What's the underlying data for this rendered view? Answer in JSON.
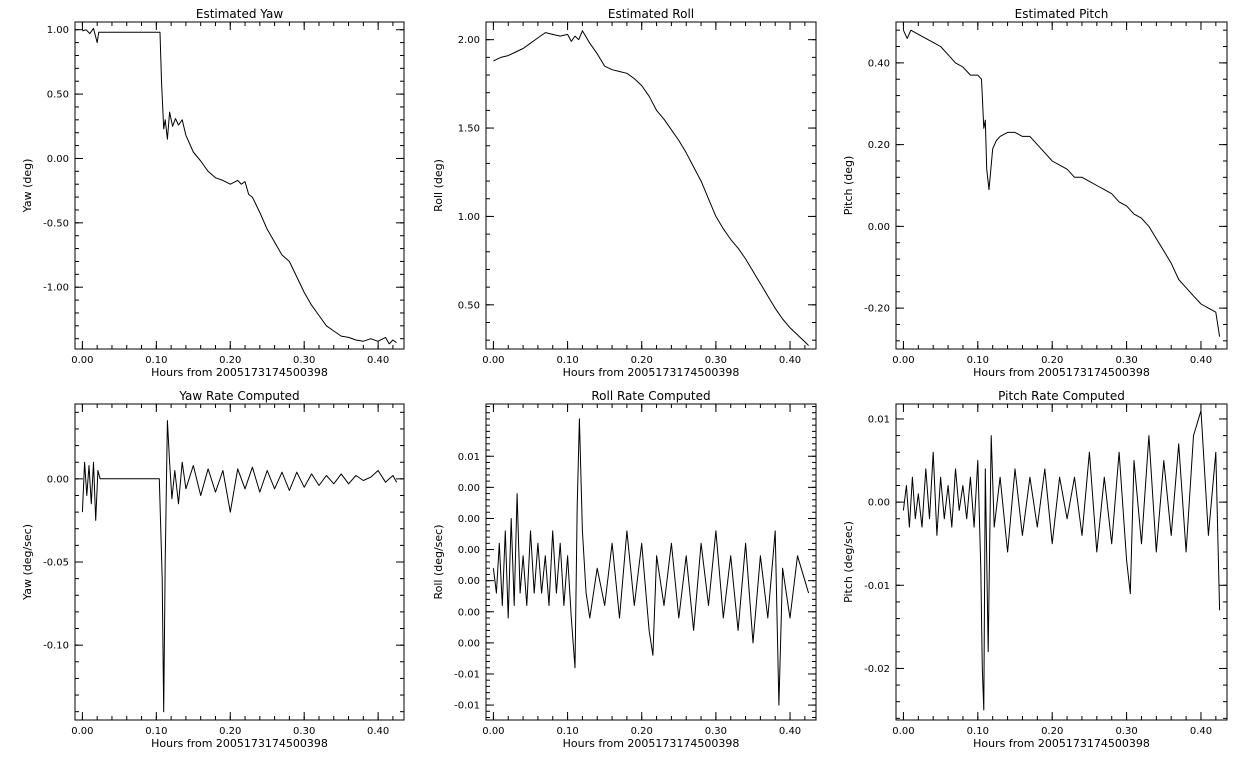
{
  "chart_data": [
    {
      "type": "line",
      "title": "Estimated Yaw",
      "xlabel": "Hours from 2005173174500398",
      "ylabel": "Yaw (deg)",
      "xlim": [
        -0.01,
        0.435
      ],
      "ylim": [
        -1.48,
        1.06
      ],
      "xticks": [
        0.0,
        0.1,
        0.2,
        0.3,
        0.4
      ],
      "xticklabels": [
        "0.00",
        "0.10",
        "0.20",
        "0.30",
        "0.40"
      ],
      "yticks": [
        -1.0,
        -0.5,
        0.0,
        0.5,
        1.0
      ],
      "yticklabels": [
        "-1.00",
        "-0.50",
        "0.00",
        "0.50",
        "1.00"
      ],
      "x": [
        0.0,
        0.005,
        0.01,
        0.015,
        0.02,
        0.022,
        0.025,
        0.105,
        0.107,
        0.11,
        0.112,
        0.115,
        0.118,
        0.122,
        0.126,
        0.13,
        0.135,
        0.14,
        0.15,
        0.16,
        0.17,
        0.18,
        0.19,
        0.2,
        0.21,
        0.215,
        0.22,
        0.225,
        0.23,
        0.24,
        0.25,
        0.26,
        0.27,
        0.28,
        0.29,
        0.3,
        0.31,
        0.32,
        0.33,
        0.34,
        0.35,
        0.36,
        0.37,
        0.38,
        0.39,
        0.4,
        0.41,
        0.415,
        0.42,
        0.425
      ],
      "y": [
        0.99,
        1.0,
        0.97,
        1.01,
        0.9,
        0.98,
        0.98,
        0.98,
        0.6,
        0.23,
        0.3,
        0.15,
        0.36,
        0.25,
        0.31,
        0.26,
        0.3,
        0.18,
        0.05,
        -0.02,
        -0.1,
        -0.15,
        -0.17,
        -0.2,
        -0.17,
        -0.2,
        -0.18,
        -0.28,
        -0.3,
        -0.42,
        -0.55,
        -0.65,
        -0.75,
        -0.8,
        -0.92,
        -1.04,
        -1.14,
        -1.22,
        -1.3,
        -1.34,
        -1.38,
        -1.39,
        -1.41,
        -1.42,
        -1.4,
        -1.42,
        -1.39,
        -1.44,
        -1.41,
        -1.43
      ]
    },
    {
      "type": "line",
      "title": "Estimated Roll",
      "xlabel": "Hours from 2005173174500398",
      "ylabel": "Roll (deg)",
      "xlim": [
        -0.01,
        0.435
      ],
      "ylim": [
        0.25,
        2.1
      ],
      "xticks": [
        0.0,
        0.1,
        0.2,
        0.3,
        0.4
      ],
      "xticklabels": [
        "0.00",
        "0.10",
        "0.20",
        "0.30",
        "0.40"
      ],
      "yticks": [
        0.5,
        1.0,
        1.5,
        2.0
      ],
      "yticklabels": [
        "0.50",
        "1.00",
        "1.50",
        "2.00"
      ],
      "x": [
        0.0,
        0.01,
        0.02,
        0.03,
        0.04,
        0.05,
        0.06,
        0.07,
        0.08,
        0.09,
        0.1,
        0.105,
        0.11,
        0.115,
        0.12,
        0.13,
        0.14,
        0.15,
        0.16,
        0.17,
        0.18,
        0.19,
        0.2,
        0.21,
        0.22,
        0.23,
        0.24,
        0.25,
        0.26,
        0.27,
        0.28,
        0.29,
        0.3,
        0.31,
        0.32,
        0.33,
        0.34,
        0.35,
        0.36,
        0.37,
        0.38,
        0.39,
        0.4,
        0.41,
        0.42,
        0.425
      ],
      "y": [
        1.88,
        1.9,
        1.91,
        1.93,
        1.95,
        1.98,
        2.01,
        2.04,
        2.03,
        2.02,
        2.03,
        1.99,
        2.02,
        2.0,
        2.05,
        1.98,
        1.92,
        1.85,
        1.83,
        1.82,
        1.81,
        1.78,
        1.74,
        1.68,
        1.6,
        1.55,
        1.49,
        1.43,
        1.36,
        1.28,
        1.2,
        1.1,
        1.0,
        0.93,
        0.87,
        0.82,
        0.76,
        0.69,
        0.62,
        0.55,
        0.48,
        0.42,
        0.37,
        0.33,
        0.29,
        0.27
      ]
    },
    {
      "type": "line",
      "title": "Estimated Pitch",
      "xlabel": "Hours from 2005173174500398",
      "ylabel": "Pitch (deg)",
      "xlim": [
        -0.01,
        0.435
      ],
      "ylim": [
        -0.3,
        0.5
      ],
      "xticks": [
        0.0,
        0.1,
        0.2,
        0.3,
        0.4
      ],
      "xticklabels": [
        "0.00",
        "0.10",
        "0.20",
        "0.30",
        "0.40"
      ],
      "yticks": [
        -0.2,
        0.0,
        0.2,
        0.4
      ],
      "yticklabels": [
        "-0.20",
        "0.00",
        "0.20",
        "0.40"
      ],
      "x": [
        0.0,
        0.005,
        0.01,
        0.02,
        0.03,
        0.04,
        0.05,
        0.06,
        0.07,
        0.08,
        0.09,
        0.1,
        0.105,
        0.108,
        0.11,
        0.112,
        0.115,
        0.12,
        0.125,
        0.13,
        0.14,
        0.15,
        0.16,
        0.17,
        0.18,
        0.19,
        0.2,
        0.21,
        0.22,
        0.23,
        0.24,
        0.25,
        0.26,
        0.27,
        0.28,
        0.29,
        0.3,
        0.31,
        0.32,
        0.33,
        0.34,
        0.35,
        0.36,
        0.37,
        0.38,
        0.39,
        0.4,
        0.41,
        0.42,
        0.425
      ],
      "y": [
        0.48,
        0.46,
        0.48,
        0.47,
        0.46,
        0.45,
        0.44,
        0.42,
        0.4,
        0.39,
        0.37,
        0.37,
        0.36,
        0.24,
        0.26,
        0.14,
        0.09,
        0.19,
        0.21,
        0.22,
        0.23,
        0.23,
        0.22,
        0.22,
        0.2,
        0.18,
        0.16,
        0.15,
        0.14,
        0.12,
        0.12,
        0.11,
        0.1,
        0.09,
        0.08,
        0.06,
        0.05,
        0.03,
        0.02,
        0.0,
        -0.03,
        -0.06,
        -0.09,
        -0.13,
        -0.15,
        -0.17,
        -0.19,
        -0.2,
        -0.21,
        -0.27
      ]
    },
    {
      "type": "line",
      "title": "Yaw Rate Computed",
      "xlabel": "Hours from 2005173174500398",
      "ylabel": "Yaw (deg/sec)",
      "xlim": [
        -0.01,
        0.435
      ],
      "ylim": [
        -0.145,
        0.045
      ],
      "xticks": [
        0.0,
        0.1,
        0.2,
        0.3,
        0.4
      ],
      "xticklabels": [
        "0.00",
        "0.10",
        "0.20",
        "0.30",
        "0.40"
      ],
      "yticks": [
        -0.1,
        -0.05,
        0.0
      ],
      "yticklabels": [
        "-0.10",
        "-0.05",
        "0.00"
      ],
      "x": [
        0.0,
        0.003,
        0.006,
        0.009,
        0.012,
        0.015,
        0.018,
        0.021,
        0.024,
        0.027,
        0.1,
        0.104,
        0.108,
        0.11,
        0.112,
        0.115,
        0.118,
        0.121,
        0.125,
        0.13,
        0.135,
        0.14,
        0.15,
        0.16,
        0.17,
        0.18,
        0.19,
        0.2,
        0.21,
        0.22,
        0.23,
        0.24,
        0.25,
        0.26,
        0.27,
        0.28,
        0.29,
        0.3,
        0.31,
        0.32,
        0.33,
        0.34,
        0.35,
        0.36,
        0.37,
        0.38,
        0.39,
        0.4,
        0.41,
        0.42,
        0.425
      ],
      "y": [
        -0.02,
        0.01,
        -0.01,
        0.008,
        -0.015,
        0.01,
        -0.025,
        0.005,
        0.0,
        0.0,
        0.0,
        0.0,
        -0.06,
        -0.14,
        -0.05,
        0.035,
        0.01,
        -0.012,
        0.005,
        -0.015,
        0.01,
        -0.006,
        0.008,
        -0.01,
        0.006,
        -0.008,
        0.005,
        -0.02,
        0.006,
        -0.006,
        0.007,
        -0.008,
        0.005,
        -0.006,
        0.004,
        -0.007,
        0.004,
        -0.005,
        0.003,
        -0.004,
        0.002,
        -0.003,
        0.003,
        -0.003,
        0.002,
        -0.001,
        0.001,
        0.005,
        -0.002,
        0.002,
        -0.002
      ]
    },
    {
      "type": "line",
      "title": "Roll Rate Computed",
      "xlabel": "Hours from 2005173174500398",
      "ylabel": "Roll (deg/sec)",
      "xlim": [
        -0.01,
        0.435
      ],
      "ylim": [
        -0.0112,
        0.0142
      ],
      "xticks": [
        0.0,
        0.1,
        0.2,
        0.3,
        0.4
      ],
      "xticklabels": [
        "0.00",
        "0.10",
        "0.20",
        "0.30",
        "0.40"
      ],
      "yticks": [
        -0.01,
        -0.0075,
        -0.005,
        -0.0025,
        0.0,
        0.0025,
        0.005,
        0.0075,
        0.01
      ],
      "yticklabels": [
        "-0.01",
        "-0.01",
        "0.00",
        "0.00",
        "0.00",
        "0.00",
        "0.00",
        "0.00",
        "0.01"
      ],
      "x": [
        0.0,
        0.004,
        0.008,
        0.012,
        0.016,
        0.02,
        0.024,
        0.028,
        0.032,
        0.036,
        0.04,
        0.045,
        0.05,
        0.055,
        0.06,
        0.065,
        0.07,
        0.075,
        0.08,
        0.085,
        0.09,
        0.095,
        0.1,
        0.105,
        0.11,
        0.113,
        0.116,
        0.12,
        0.125,
        0.13,
        0.14,
        0.15,
        0.16,
        0.17,
        0.18,
        0.19,
        0.2,
        0.21,
        0.215,
        0.22,
        0.23,
        0.24,
        0.25,
        0.26,
        0.27,
        0.28,
        0.29,
        0.3,
        0.31,
        0.32,
        0.33,
        0.34,
        0.35,
        0.36,
        0.37,
        0.38,
        0.385,
        0.39,
        0.4,
        0.41,
        0.42,
        0.425
      ],
      "y": [
        0.001,
        -0.001,
        0.003,
        -0.002,
        0.004,
        -0.003,
        0.005,
        -0.002,
        0.007,
        -0.001,
        0.002,
        -0.002,
        0.004,
        -0.001,
        0.003,
        -0.001,
        0.002,
        -0.002,
        0.004,
        -0.001,
        0.003,
        -0.002,
        0.002,
        -0.003,
        -0.007,
        0.006,
        0.013,
        0.004,
        -0.001,
        -0.003,
        0.001,
        -0.002,
        0.003,
        -0.003,
        0.004,
        -0.002,
        0.003,
        -0.004,
        -0.006,
        0.002,
        -0.002,
        0.003,
        -0.003,
        0.002,
        -0.004,
        0.003,
        -0.002,
        0.004,
        -0.003,
        0.002,
        -0.004,
        0.003,
        -0.005,
        0.002,
        -0.003,
        0.004,
        -0.01,
        0.001,
        -0.003,
        0.002,
        0.0,
        -0.001
      ]
    },
    {
      "type": "line",
      "title": "Pitch Rate Computed",
      "xlabel": "Hours from 2005173174500398",
      "ylabel": "Pitch (deg/sec)",
      "xlim": [
        -0.01,
        0.435
      ],
      "ylim": [
        -0.0262,
        0.0118
      ],
      "xticks": [
        0.0,
        0.1,
        0.2,
        0.3,
        0.4
      ],
      "xticklabels": [
        "0.00",
        "0.10",
        "0.20",
        "0.30",
        "0.40"
      ],
      "yticks": [
        -0.02,
        -0.01,
        0.0,
        0.01
      ],
      "yticklabels": [
        "-0.02",
        "-0.01",
        "0.00",
        "0.01"
      ],
      "x": [
        0.0,
        0.004,
        0.008,
        0.012,
        0.016,
        0.02,
        0.025,
        0.03,
        0.035,
        0.04,
        0.045,
        0.05,
        0.055,
        0.06,
        0.065,
        0.07,
        0.075,
        0.08,
        0.085,
        0.09,
        0.095,
        0.1,
        0.104,
        0.106,
        0.108,
        0.11,
        0.114,
        0.118,
        0.122,
        0.13,
        0.14,
        0.15,
        0.16,
        0.17,
        0.18,
        0.19,
        0.2,
        0.21,
        0.22,
        0.23,
        0.24,
        0.25,
        0.26,
        0.27,
        0.28,
        0.29,
        0.3,
        0.305,
        0.31,
        0.32,
        0.33,
        0.34,
        0.35,
        0.36,
        0.37,
        0.38,
        0.39,
        0.4,
        0.41,
        0.42,
        0.425
      ],
      "y": [
        -0.001,
        0.002,
        -0.003,
        0.003,
        -0.002,
        0.001,
        -0.003,
        0.004,
        -0.002,
        0.006,
        -0.004,
        0.003,
        -0.002,
        0.002,
        -0.003,
        0.004,
        -0.001,
        0.002,
        -0.002,
        0.003,
        -0.003,
        0.005,
        -0.008,
        -0.02,
        -0.025,
        0.004,
        -0.018,
        0.008,
        -0.003,
        0.003,
        -0.006,
        0.004,
        -0.004,
        0.003,
        -0.003,
        0.004,
        -0.005,
        0.003,
        -0.002,
        0.003,
        -0.004,
        0.006,
        -0.006,
        0.003,
        -0.005,
        0.006,
        -0.007,
        -0.011,
        0.005,
        -0.005,
        0.008,
        -0.006,
        0.005,
        -0.004,
        0.007,
        -0.006,
        0.008,
        0.011,
        -0.004,
        0.006,
        -0.013
      ]
    }
  ]
}
